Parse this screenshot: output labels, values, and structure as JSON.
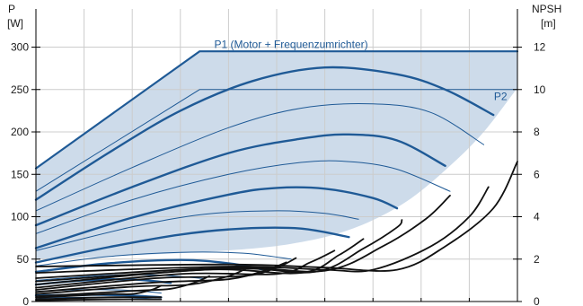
{
  "chart_data": {
    "type": "line",
    "left_axis": {
      "title_line1": "P",
      "title_line2": "[W]",
      "range": [
        0,
        345
      ],
      "ticks": [
        0,
        50,
        100,
        150,
        200,
        250,
        300
      ],
      "tick_labels": [
        "0",
        "50",
        "100",
        "150",
        "200",
        "250",
        "300"
      ]
    },
    "right_axis": {
      "title_line1": "NPSH",
      "title_line2": "[m]",
      "range": [
        0,
        13.8
      ],
      "ticks": [
        0,
        2,
        4,
        6,
        8,
        10,
        12
      ],
      "tick_labels": [
        "0",
        "2",
        "4",
        "6",
        "8",
        "10",
        "12"
      ]
    },
    "x_range": [
      0,
      10
    ],
    "grid": true,
    "annotations": [
      {
        "text": "P1 (Motor + Frequenzumrichter)",
        "x": 5.3,
        "y": 303
      },
      {
        "text": "P2",
        "x": 9.65,
        "y": 242
      }
    ],
    "envelope": {
      "upper": [
        [
          0,
          157
        ],
        [
          3.4,
          295
        ],
        [
          10,
          295
        ]
      ],
      "lower": [
        [
          10,
          252
        ],
        [
          9.3,
          200
        ],
        [
          8.6,
          160
        ],
        [
          7.8,
          122
        ],
        [
          7.0,
          96
        ],
        [
          6.2,
          79
        ],
        [
          5.3,
          68
        ],
        [
          4.4,
          62
        ],
        [
          3.3,
          58
        ],
        [
          2.2,
          55
        ],
        [
          1.1,
          52
        ],
        [
          0,
          50
        ]
      ]
    },
    "series": [
      {
        "kind": "power_limit",
        "axis": "left",
        "color": "#1f5a96",
        "points": [
          [
            0,
            157
          ],
          [
            3.4,
            295
          ],
          [
            10,
            295
          ]
        ]
      },
      {
        "kind": "power_limit_p2",
        "axis": "left",
        "color": "#1f5a96",
        "points": [
          [
            0,
            130
          ],
          [
            3.4,
            250
          ],
          [
            10,
            250
          ]
        ]
      },
      {
        "kind": "power",
        "axis": "left",
        "color": "#1f5a96",
        "points": [
          [
            0,
            120
          ],
          [
            1.5,
            175
          ],
          [
            3,
            225
          ],
          [
            4.5,
            260
          ],
          [
            6,
            276
          ],
          [
            7.5,
            268
          ],
          [
            8.5,
            250
          ],
          [
            9.5,
            220
          ]
        ]
      },
      {
        "kind": "power_thin",
        "axis": "left",
        "color": "#1f5a96",
        "points": [
          [
            0,
            107
          ],
          [
            2,
            158
          ],
          [
            4,
            205
          ],
          [
            5.5,
            228
          ],
          [
            7,
            233
          ],
          [
            8.2,
            223
          ],
          [
            9.3,
            185
          ]
        ]
      },
      {
        "kind": "power",
        "axis": "left",
        "color": "#1f5a96",
        "points": [
          [
            0,
            90
          ],
          [
            2,
            135
          ],
          [
            4,
            175
          ],
          [
            5.5,
            192
          ],
          [
            6.5,
            197
          ],
          [
            7.5,
            190
          ],
          [
            8.5,
            160
          ]
        ]
      },
      {
        "kind": "power_thin",
        "axis": "left",
        "color": "#1f5a96",
        "points": [
          [
            0,
            80
          ],
          [
            2,
            120
          ],
          [
            4,
            150
          ],
          [
            5.5,
            164
          ],
          [
            6.5,
            165
          ],
          [
            7.5,
            156
          ],
          [
            8.6,
            130
          ]
        ]
      },
      {
        "kind": "power",
        "axis": "left",
        "color": "#1f5a96",
        "points": [
          [
            0,
            63
          ],
          [
            2,
            99
          ],
          [
            4,
            126
          ],
          [
            5,
            134
          ],
          [
            6,
            133
          ],
          [
            7,
            122
          ],
          [
            7.5,
            110
          ]
        ]
      },
      {
        "kind": "power_thin",
        "axis": "left",
        "color": "#1f5a96",
        "points": [
          [
            0,
            60
          ],
          [
            2,
            88
          ],
          [
            3.5,
            103
          ],
          [
            5,
            107
          ],
          [
            6,
            104
          ],
          [
            6.7,
            97
          ]
        ]
      },
      {
        "kind": "power",
        "axis": "left",
        "color": "#1f5a96",
        "points": [
          [
            0,
            46
          ],
          [
            1.5,
            64
          ],
          [
            3,
            79
          ],
          [
            4.3,
            86
          ],
          [
            5.5,
            86
          ],
          [
            6.5,
            76
          ]
        ]
      },
      {
        "kind": "power_thin",
        "axis": "left",
        "color": "#1f5a96",
        "points": [
          [
            0,
            42
          ],
          [
            1.5,
            53
          ],
          [
            3,
            58
          ],
          [
            4.3,
            57
          ],
          [
            5.3,
            50
          ]
        ]
      },
      {
        "kind": "power",
        "axis": "left",
        "color": "#1f5a96",
        "points": [
          [
            0,
            35
          ],
          [
            1.5,
            45
          ],
          [
            3,
            49
          ],
          [
            4,
            45
          ],
          [
            4.7,
            38
          ]
        ]
      },
      {
        "kind": "power_thin",
        "axis": "left",
        "color": "#1f5a96",
        "points": [
          [
            0,
            25
          ],
          [
            1.5,
            31
          ],
          [
            2.6,
            31
          ],
          [
            3.5,
            27
          ]
        ]
      },
      {
        "kind": "power",
        "axis": "left",
        "color": "#1f5a96",
        "points": [
          [
            0,
            20
          ],
          [
            1,
            25
          ],
          [
            2,
            26
          ],
          [
            2.8,
            22
          ]
        ]
      },
      {
        "kind": "power_thin",
        "axis": "left",
        "color": "#1f5a96",
        "points": [
          [
            0,
            12
          ],
          [
            1,
            14
          ],
          [
            2,
            13
          ],
          [
            2.6,
            10
          ]
        ]
      },
      {
        "kind": "power",
        "axis": "left",
        "color": "#1f5a96",
        "points": [
          [
            0,
            7
          ],
          [
            1,
            8
          ],
          [
            2,
            7
          ],
          [
            2.6,
            5
          ]
        ]
      },
      {
        "kind": "power_thin",
        "axis": "left",
        "color": "#1f5a96",
        "points": [
          [
            0,
            4
          ],
          [
            1,
            5
          ],
          [
            2,
            4.5
          ],
          [
            2.5,
            3
          ]
        ]
      },
      {
        "kind": "npsh",
        "axis": "right",
        "color": "#111111",
        "points": [
          [
            0,
            1.65
          ],
          [
            4,
            1.75
          ],
          [
            6,
            1.6
          ],
          [
            7.5,
            1.5
          ],
          [
            8.5,
            2.6
          ],
          [
            9.5,
            4.4
          ],
          [
            10,
            6.6
          ]
        ]
      },
      {
        "kind": "npsh",
        "axis": "right",
        "color": "#111111",
        "points": [
          [
            0,
            1.35
          ],
          [
            4,
            1.65
          ],
          [
            6,
            1.5
          ],
          [
            7,
            1.5
          ],
          [
            8.2,
            2.6
          ],
          [
            9,
            4.0
          ],
          [
            9.4,
            5.4
          ]
        ]
      },
      {
        "kind": "npsh",
        "axis": "right",
        "color": "#111111",
        "points": [
          [
            0,
            1.1
          ],
          [
            4,
            1.6
          ],
          [
            6,
            1.45
          ],
          [
            7.2,
            2.6
          ],
          [
            8.1,
            3.9
          ],
          [
            8.6,
            5.0
          ]
        ]
      },
      {
        "kind": "npsh",
        "axis": "right",
        "color": "#111111",
        "points": [
          [
            0,
            0.95
          ],
          [
            4,
            1.55
          ],
          [
            5.8,
            1.4
          ],
          [
            6.8,
            2.5
          ],
          [
            7.5,
            3.5
          ],
          [
            7.6,
            3.85
          ]
        ]
      },
      {
        "kind": "npsh",
        "axis": "right",
        "color": "#111111",
        "points": [
          [
            0,
            0.8
          ],
          [
            3.5,
            1.5
          ],
          [
            5.5,
            1.35
          ],
          [
            6.3,
            2.2
          ],
          [
            6.8,
            2.95
          ]
        ]
      },
      {
        "kind": "npsh",
        "axis": "right",
        "color": "#111111",
        "points": [
          [
            0,
            0.65
          ],
          [
            3,
            1.3
          ],
          [
            5,
            1.3
          ],
          [
            5.7,
            1.85
          ],
          [
            6.2,
            2.4
          ]
        ]
      },
      {
        "kind": "npsh",
        "axis": "right",
        "color": "#111111",
        "points": [
          [
            0,
            0.55
          ],
          [
            2.5,
            1.1
          ],
          [
            4.3,
            1.2
          ],
          [
            5,
            1.6
          ],
          [
            5.4,
            2.05
          ]
        ]
      },
      {
        "kind": "npsh",
        "axis": "right",
        "color": "#111111",
        "points": [
          [
            0,
            0.45
          ],
          [
            2.5,
            0.9
          ],
          [
            4,
            1.05
          ],
          [
            4.8,
            1.5
          ],
          [
            5.2,
            1.85
          ]
        ]
      },
      {
        "kind": "npsh",
        "axis": "right",
        "color": "#111111",
        "points": [
          [
            0,
            0.35
          ],
          [
            2,
            0.7
          ],
          [
            3.2,
            0.8
          ],
          [
            4,
            1.2
          ],
          [
            4.4,
            1.6
          ]
        ]
      },
      {
        "kind": "npsh",
        "axis": "right",
        "color": "#111111",
        "points": [
          [
            0,
            0.25
          ],
          [
            2,
            0.5
          ],
          [
            2.8,
            0.6
          ],
          [
            3.3,
            0.9
          ],
          [
            3.6,
            1.2
          ]
        ]
      },
      {
        "kind": "npsh",
        "axis": "right",
        "color": "#111111",
        "points": [
          [
            0,
            0.18
          ],
          [
            1.5,
            0.35
          ],
          [
            2,
            0.35
          ],
          [
            2.4,
            0.55
          ],
          [
            2.6,
            0.75
          ]
        ]
      },
      {
        "kind": "npsh",
        "axis": "right",
        "color": "#111111",
        "points": [
          [
            0,
            0.1
          ],
          [
            1.5,
            0.2
          ],
          [
            2.6,
            0.2
          ]
        ]
      },
      {
        "kind": "npsh",
        "axis": "right",
        "color": "#111111",
        "points": [
          [
            0,
            0.05
          ],
          [
            1.5,
            0.1
          ],
          [
            2.6,
            0.1
          ]
        ]
      }
    ],
    "colors": {
      "envelope_fill": "#cddbea",
      "power_line": "#1f5a96",
      "npsh_line": "#111111",
      "grid": "#cccccc",
      "axis": "#000000"
    }
  }
}
